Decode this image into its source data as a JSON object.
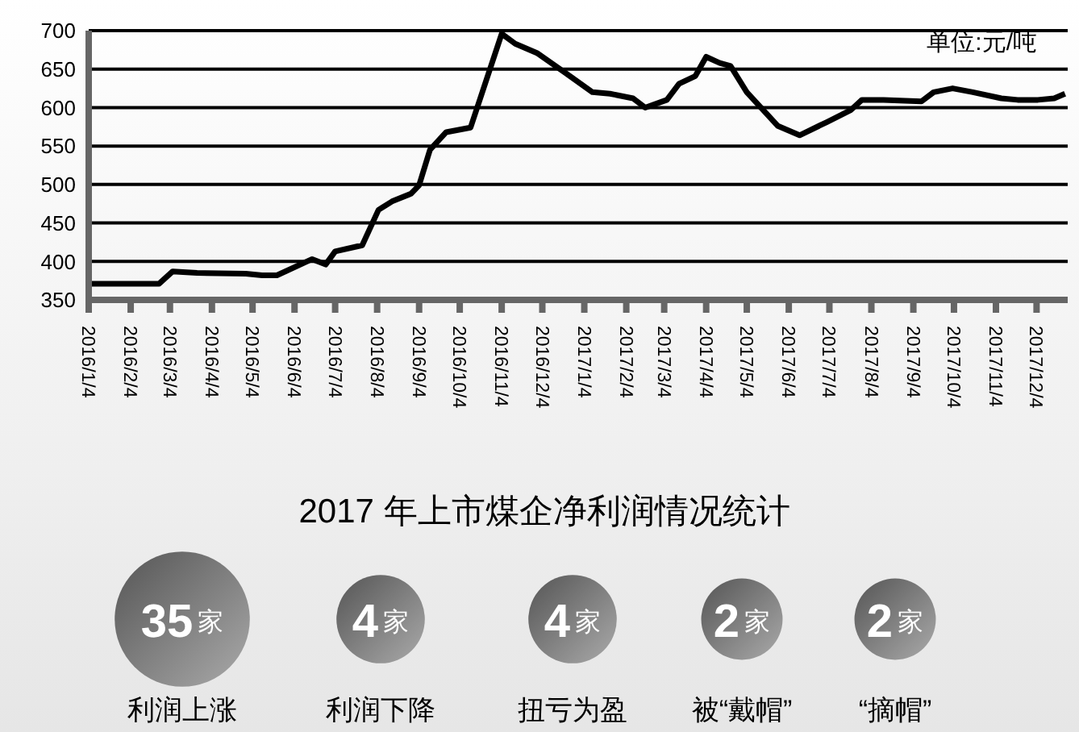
{
  "chart_data": [
    {
      "type": "line",
      "annotations": [
        "单位:元/吨"
      ],
      "x": [
        "2016-01-04",
        "2016-02-25",
        "2016-03-06",
        "2016-03-24",
        "2016-04-29",
        "2016-05-11",
        "2016-05-22",
        "2016-06-17",
        "2016-06-27",
        "2016-07-04",
        "2016-07-24",
        "2016-08-05",
        "2016-08-15",
        "2016-08-29",
        "2016-09-04",
        "2016-09-12",
        "2016-09-24",
        "2016-10-12",
        "2016-11-04",
        "2016-11-14",
        "2016-11-30",
        "2016-12-21",
        "2017-01-10",
        "2017-01-23",
        "2017-02-09",
        "2017-02-18",
        "2017-03-06",
        "2017-03-15",
        "2017-03-27",
        "2017-04-04",
        "2017-04-14",
        "2017-04-22",
        "2017-05-04",
        "2017-05-27",
        "2017-06-12",
        "2017-07-02",
        "2017-07-20",
        "2017-07-28",
        "2017-08-13",
        "2017-09-10",
        "2017-09-19",
        "2017-10-03",
        "2017-10-18",
        "2017-11-08",
        "2017-11-20",
        "2017-12-05",
        "2017-12-17",
        "2017-12-25"
      ],
      "series": [
        {
          "color": "#000000",
          "values": [
            371,
            371,
            387,
            385,
            384,
            382,
            382,
            403,
            396,
            413,
            421,
            467,
            478,
            488,
            499,
            545,
            568,
            574,
            696,
            683,
            671,
            645,
            620,
            618,
            612,
            600,
            610,
            631,
            641,
            666,
            658,
            654,
            620,
            576,
            564,
            581,
            597,
            610,
            610,
            608,
            620,
            625,
            620,
            612,
            610,
            610,
            612,
            618
          ]
        }
      ],
      "xlim": [
        "2016-01-04",
        "2017-12-27"
      ],
      "xticks": [
        {
          "value": "2016-01-04",
          "label": "2016/1/4"
        },
        {
          "value": "2016-02-04",
          "label": "2016/2/4"
        },
        {
          "value": "2016-03-04",
          "label": "2016/3/4"
        },
        {
          "value": "2016-04-04",
          "label": "2016/4/4"
        },
        {
          "value": "2016-05-04",
          "label": "2016/5/4"
        },
        {
          "value": "2016-06-04",
          "label": "2016/6/4"
        },
        {
          "value": "2016-07-04",
          "label": "2016/7/4"
        },
        {
          "value": "2016-08-04",
          "label": "2016/8/4"
        },
        {
          "value": "2016-09-04",
          "label": "2016/9/4"
        },
        {
          "value": "2016-10-04",
          "label": "2016/10/4"
        },
        {
          "value": "2016-11-04",
          "label": "2016/11/4"
        },
        {
          "value": "2016-12-04",
          "label": "2016/12/4"
        },
        {
          "value": "2017-01-04",
          "label": "2017/1/4"
        },
        {
          "value": "2017-02-04",
          "label": "2017/2/4"
        },
        {
          "value": "2017-03-04",
          "label": "2017/3/4"
        },
        {
          "value": "2017-04-04",
          "label": "2017/4/4"
        },
        {
          "value": "2017-05-04",
          "label": "2017/5/4"
        },
        {
          "value": "2017-06-04",
          "label": "2017/6/4"
        },
        {
          "value": "2017-07-04",
          "label": "2017/7/4"
        },
        {
          "value": "2017-08-04",
          "label": "2017/8/4"
        },
        {
          "value": "2017-09-04",
          "label": "2017/9/4"
        },
        {
          "value": "2017-10-04",
          "label": "2017/10/4"
        },
        {
          "value": "2017-11-04",
          "label": "2017/11/4"
        },
        {
          "value": "2017-12-04",
          "label": "2017/12/4"
        }
      ],
      "ylim": [
        350,
        700
      ],
      "yticks": [
        350,
        400,
        450,
        500,
        550,
        600,
        650,
        700
      ],
      "grid": "y",
      "marker": "none",
      "line_style": "solid"
    },
    {
      "type": "other",
      "title": "2017 年上市煤企净利润情况统计",
      "categories": [
        "利润上涨",
        "利润下降",
        "扭亏为盈",
        "被“戴帽”",
        "“摘帽”"
      ],
      "values": [
        35,
        4,
        4,
        2,
        2
      ],
      "value_labels": [
        "35家",
        "4家",
        "4家",
        "2家",
        "2家"
      ]
    }
  ]
}
